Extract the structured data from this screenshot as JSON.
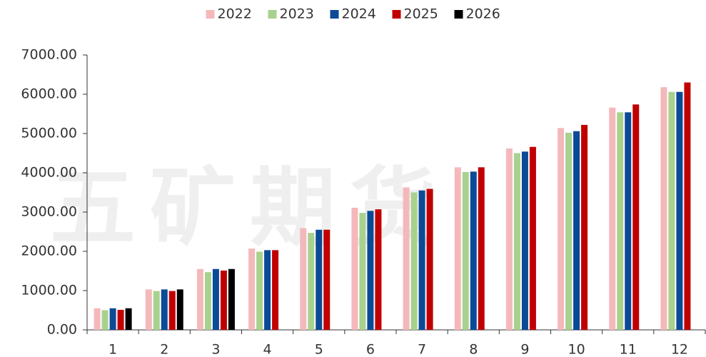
{
  "chart_data": {
    "type": "bar",
    "watermark": "五矿期货",
    "categories": [
      "1",
      "2",
      "3",
      "4",
      "5",
      "6",
      "7",
      "8",
      "9",
      "10",
      "11",
      "12"
    ],
    "series": [
      {
        "name": "2022",
        "color": "#f4b8bb",
        "values": [
          550,
          1030,
          1550,
          2070,
          2590,
          3110,
          3630,
          4140,
          4620,
          5140,
          5660,
          6180
        ]
      },
      {
        "name": "2023",
        "color": "#a9d18e",
        "values": [
          500,
          990,
          1470,
          1990,
          2470,
          2980,
          3500,
          4020,
          4500,
          5020,
          5540,
          6060
        ]
      },
      {
        "name": "2024",
        "color": "#0b4a96",
        "values": [
          550,
          1030,
          1550,
          2030,
          2550,
          3030,
          3550,
          4030,
          4540,
          5060,
          5540,
          6060
        ]
      },
      {
        "name": "2025",
        "color": "#c00000",
        "values": [
          510,
          990,
          1510,
          2030,
          2550,
          3070,
          3590,
          4140,
          4660,
          5220,
          5740,
          6300
        ]
      },
      {
        "name": "2026",
        "color": "#000000",
        "values": [
          550,
          1030,
          1550,
          null,
          null,
          null,
          null,
          null,
          null,
          null,
          null,
          null
        ]
      }
    ],
    "ylim": [
      0,
      7000
    ],
    "yticks": [
      {
        "value": 0,
        "label": "0.00"
      },
      {
        "value": 1000,
        "label": "1000.00"
      },
      {
        "value": 2000,
        "label": "2000.00"
      },
      {
        "value": 3000,
        "label": "3000.00"
      },
      {
        "value": 4000,
        "label": "4000.00"
      },
      {
        "value": 5000,
        "label": "5000.00"
      },
      {
        "value": 6000,
        "label": "6000.00"
      },
      {
        "value": 7000,
        "label": "7000.00"
      }
    ],
    "grid": false,
    "legend": "top"
  }
}
